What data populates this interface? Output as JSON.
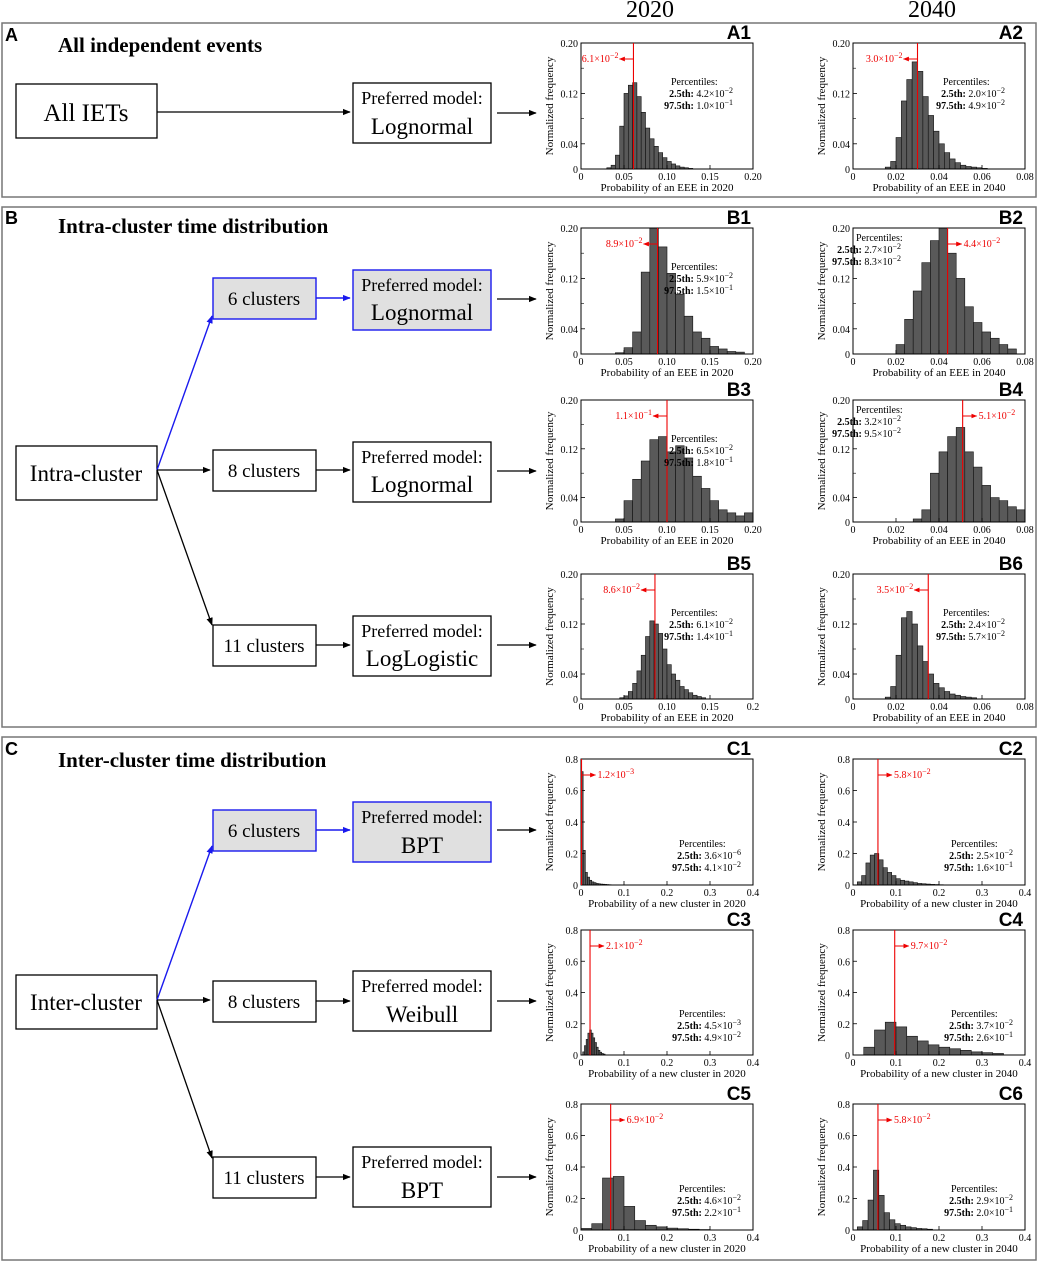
{
  "years": [
    "2020",
    "2040"
  ],
  "sections": [
    {
      "letter": "A",
      "title": "All independent events"
    },
    {
      "letter": "B",
      "title": "Intra-cluster time distribution"
    },
    {
      "letter": "C",
      "title": "Inter-cluster time distribution"
    }
  ],
  "flow": {
    "all_iets": "All IETs",
    "intra_cluster": "Intra-cluster",
    "inter_cluster": "Inter-cluster",
    "clusters_6": "6 clusters",
    "clusters_8": "8 clusters",
    "clusters_11": "11 clusters",
    "preferred_model": "Preferred model:",
    "models": {
      "A": "Lognormal",
      "B6": "Lognormal",
      "B8": "Lognormal",
      "B11": "LogLogistic",
      "C6": "BPT",
      "C8": "Weibull",
      "C11": "BPT"
    }
  },
  "colors": {
    "bar": "#595959",
    "median": "#ee0000",
    "highlight": "#1a1aee",
    "highlight_fill": "#e0e0e0"
  },
  "percentiles_title": "Percentiles:",
  "p25_label": "2.5th",
  "p975_label": "97.5th",
  "ylabel": "Normalized frequency",
  "chart_data": [
    {
      "id": "A1",
      "type": "bar",
      "xlabel": "Probability of an EEE in 2020",
      "xlim": [
        0,
        0.2
      ],
      "ylim": [
        0,
        0.2
      ],
      "xticks": [
        "0",
        "0.05",
        "0.10",
        "0.15",
        "0.20"
      ],
      "yticks": [
        "0",
        "0.04",
        "0.12",
        "0.20"
      ],
      "bin_width": 0.005,
      "bin_start": 0.03,
      "values": [
        0.002,
        0.006,
        0.022,
        0.068,
        0.12,
        0.133,
        0.137,
        0.115,
        0.09,
        0.065,
        0.048,
        0.036,
        0.026,
        0.018,
        0.012,
        0.008,
        0.005,
        0.003,
        0.002,
        0.001
      ],
      "median": 0.061,
      "median_label": "6.1×10",
      "median_exp": "−2",
      "median_side": "left",
      "p25": "4.2×10",
      "p25_exp": "−2",
      "p975": "1.0×10",
      "p975_exp": "−1",
      "pct_box": "right-top"
    },
    {
      "id": "A2",
      "type": "bar",
      "xlabel": "Probability of an EEE in 2040",
      "xlim": [
        0,
        0.08
      ],
      "ylim": [
        0,
        0.2
      ],
      "xticks": [
        "0",
        "0.02",
        "0.04",
        "0.06",
        "0.08"
      ],
      "yticks": [
        "0",
        "0.04",
        "0.12",
        "0.20"
      ],
      "bin_width": 0.0025,
      "bin_start": 0.015,
      "values": [
        0.003,
        0.012,
        0.05,
        0.108,
        0.142,
        0.17,
        0.155,
        0.115,
        0.085,
        0.06,
        0.04,
        0.026,
        0.016,
        0.01,
        0.006,
        0.004,
        0.003,
        0.002,
        0.001
      ],
      "median": 0.03,
      "median_label": "3.0×10",
      "median_exp": "−2",
      "median_side": "left",
      "p25": "2.0×10",
      "p25_exp": "−2",
      "p975": "4.9×10",
      "p975_exp": "−2",
      "pct_box": "right-top"
    },
    {
      "id": "B1",
      "type": "bar",
      "xlabel": "Probability of an EEE in 2020",
      "xlim": [
        0,
        0.2
      ],
      "ylim": [
        0,
        0.2
      ],
      "xticks": [
        "0",
        "0.05",
        "0.10",
        "0.15",
        "0.20"
      ],
      "yticks": [
        "0",
        "0.04",
        "0.12",
        "0.20"
      ],
      "bin_width": 0.01,
      "bin_start": 0.04,
      "values": [
        0.002,
        0.01,
        0.035,
        0.13,
        0.2,
        0.17,
        0.128,
        0.095,
        0.06,
        0.035,
        0.025,
        0.012,
        0.008,
        0.004,
        0.003
      ],
      "median": 0.089,
      "median_label": "8.9×10",
      "median_exp": "−2",
      "median_side": "left",
      "p25": "5.9×10",
      "p25_exp": "−2",
      "p975": "1.5×10",
      "p975_exp": "−1",
      "pct_box": "right-top"
    },
    {
      "id": "B2",
      "type": "bar",
      "xlabel": "Probability of an EEE in 2040",
      "xlim": [
        0,
        0.08
      ],
      "ylim": [
        0,
        0.2
      ],
      "xticks": [
        "0",
        "0.02",
        "0.04",
        "0.06",
        "0.08"
      ],
      "yticks": [
        "0",
        "0.04",
        "0.12",
        "0.20"
      ],
      "bin_width": 0.004,
      "bin_start": 0.02,
      "values": [
        0.015,
        0.055,
        0.1,
        0.145,
        0.18,
        0.2,
        0.16,
        0.12,
        0.075,
        0.05,
        0.035,
        0.025,
        0.015,
        0.008
      ],
      "median": 0.044,
      "median_label": "4.4×10",
      "median_exp": "−2",
      "median_side": "right",
      "p25": "2.7×10",
      "p25_exp": "−2",
      "p975": "8.3×10",
      "p975_exp": "−2",
      "pct_box": "left-top"
    },
    {
      "id": "B3",
      "type": "bar",
      "xlabel": "Probability of an EEE in 2020",
      "xlim": [
        0,
        0.2
      ],
      "ylim": [
        0,
        0.2
      ],
      "xticks": [
        "0",
        "0.05",
        "0.10",
        "0.15",
        "0.20"
      ],
      "yticks": [
        "0",
        "0.04",
        "0.12",
        "0.20"
      ],
      "bin_width": 0.01,
      "bin_start": 0.04,
      "values": [
        0.005,
        0.035,
        0.07,
        0.1,
        0.135,
        0.14,
        0.115,
        0.125,
        0.105,
        0.075,
        0.055,
        0.035,
        0.02,
        0.015,
        0.01,
        0.015
      ],
      "median": 0.1,
      "median_label": "1.1×10",
      "median_exp": "−1",
      "median_side": "left",
      "p25": "6.5×10",
      "p25_exp": "−2",
      "p975": "1.8×10",
      "p975_exp": "−1",
      "pct_box": "right-top"
    },
    {
      "id": "B4",
      "type": "bar",
      "xlabel": "Probability of an EEE in 2040",
      "xlim": [
        0,
        0.08
      ],
      "ylim": [
        0,
        0.2
      ],
      "xticks": [
        "0",
        "0.02",
        "0.04",
        "0.06",
        "0.08"
      ],
      "yticks": [
        "0",
        "0.04",
        "0.12",
        "0.20"
      ],
      "bin_width": 0.004,
      "bin_start": 0.028,
      "values": [
        0.005,
        0.02,
        0.08,
        0.115,
        0.14,
        0.155,
        0.115,
        0.09,
        0.06,
        0.04,
        0.035,
        0.025,
        0.02
      ],
      "median": 0.051,
      "median_label": "5.1×10",
      "median_exp": "−2",
      "median_side": "right",
      "p25": "3.2×10",
      "p25_exp": "−2",
      "p975": "9.5×10",
      "p975_exp": "−2",
      "pct_box": "left-top"
    },
    {
      "id": "B5",
      "type": "bar",
      "xlabel": "Probability of an EEE in 2020",
      "xlim": [
        0,
        0.2
      ],
      "ylim": [
        0,
        0.2
      ],
      "xticks": [
        "0",
        "0.05",
        "0.10",
        "0.15",
        "0.2"
      ],
      "yticks": [
        "0",
        "0.04",
        "0.12",
        "0.20"
      ],
      "bin_width": 0.005,
      "bin_start": 0.045,
      "values": [
        0.002,
        0.005,
        0.012,
        0.025,
        0.045,
        0.07,
        0.1,
        0.125,
        0.12,
        0.105,
        0.08,
        0.055,
        0.04,
        0.03,
        0.02,
        0.015,
        0.01,
        0.006,
        0.004,
        0.002
      ],
      "median": 0.086,
      "median_label": "8.6×10",
      "median_exp": "−2",
      "median_side": "left",
      "p25": "6.1×10",
      "p25_exp": "−2",
      "p975": "1.4×10",
      "p975_exp": "−1",
      "pct_box": "right-top"
    },
    {
      "id": "B6",
      "type": "bar",
      "xlabel": "Probability of an EEE in 2040",
      "xlim": [
        0,
        0.08
      ],
      "ylim": [
        0,
        0.2
      ],
      "xticks": [
        "0",
        "0.02",
        "0.04",
        "0.06",
        "0.08"
      ],
      "yticks": [
        "0",
        "0.04",
        "0.12",
        "0.20"
      ],
      "bin_width": 0.0025,
      "bin_start": 0.015,
      "values": [
        0.003,
        0.02,
        0.07,
        0.13,
        0.14,
        0.12,
        0.085,
        0.06,
        0.04,
        0.025,
        0.018,
        0.012,
        0.008,
        0.006,
        0.004,
        0.003,
        0.002
      ],
      "median": 0.035,
      "median_label": "3.5×10",
      "median_exp": "−2",
      "median_side": "left",
      "p25": "2.4×10",
      "p25_exp": "−2",
      "p975": "5.7×10",
      "p975_exp": "−2",
      "pct_box": "right-top"
    },
    {
      "id": "C1",
      "type": "bar",
      "xlabel": "Probability of a new cluster in 2020",
      "xlim": [
        0,
        0.4
      ],
      "ylim": [
        0,
        0.8
      ],
      "xticks": [
        "0",
        "0.1",
        "0.2",
        "0.3",
        "0.4"
      ],
      "yticks": [
        "0",
        "0.2",
        "0.4",
        "0.6",
        "0.8"
      ],
      "bin_width": 0.005,
      "bin_start": 0,
      "values": [
        0.72,
        0.22,
        0.08,
        0.05,
        0.03,
        0.02,
        0.015,
        0.01,
        0.008,
        0.006,
        0.005,
        0.004,
        0.003,
        0.002
      ],
      "median": 0.0012,
      "median_label": "1.2×10",
      "median_exp": "−3",
      "median_side": "right",
      "p25": "3.6×10",
      "p25_exp": "−6",
      "p975": "4.1×10",
      "p975_exp": "−2",
      "pct_box": "right-bottom"
    },
    {
      "id": "C2",
      "type": "bar",
      "xlabel": "Probability of a new cluster in 2040",
      "xlim": [
        0,
        0.4
      ],
      "ylim": [
        0,
        0.8
      ],
      "xticks": [
        "0",
        "0.1",
        "0.2",
        "0.3",
        "0.4"
      ],
      "yticks": [
        "0",
        "0.2",
        "0.4",
        "0.6",
        "0.8"
      ],
      "bin_width": 0.01,
      "bin_start": 0.01,
      "values": [
        0.02,
        0.06,
        0.14,
        0.19,
        0.2,
        0.16,
        0.11,
        0.08,
        0.06,
        0.04,
        0.03,
        0.025,
        0.02,
        0.015,
        0.01,
        0.008,
        0.006,
        0.004,
        0.003,
        0.002
      ],
      "median": 0.058,
      "median_label": "5.8×10",
      "median_exp": "−2",
      "median_side": "right",
      "p25": "2.5×10",
      "p25_exp": "−2",
      "p975": "1.6×10",
      "p975_exp": "−1",
      "pct_box": "right-bottom"
    },
    {
      "id": "C3",
      "type": "bar",
      "xlabel": "Probability of a new cluster in 2020",
      "xlim": [
        0,
        0.4
      ],
      "ylim": [
        0,
        0.8
      ],
      "xticks": [
        "0",
        "0.1",
        "0.2",
        "0.3",
        "0.4"
      ],
      "yticks": [
        "0",
        "0.2",
        "0.4",
        "0.6",
        "0.8"
      ],
      "bin_width": 0.004,
      "bin_start": 0.004,
      "values": [
        0.02,
        0.06,
        0.1,
        0.14,
        0.16,
        0.14,
        0.11,
        0.08,
        0.05,
        0.03,
        0.018,
        0.01,
        0.006
      ],
      "median": 0.021,
      "median_label": "2.1×10",
      "median_exp": "−2",
      "median_side": "right",
      "p25": "4.5×10",
      "p25_exp": "−3",
      "p975": "4.9×10",
      "p975_exp": "−2",
      "pct_box": "right-bottom"
    },
    {
      "id": "C4",
      "type": "bar",
      "xlabel": "Probability of a new cluster in 2040",
      "xlim": [
        0,
        0.4
      ],
      "ylim": [
        0,
        0.8
      ],
      "xticks": [
        "0",
        "0.1",
        "0.2",
        "0.3",
        "0.4"
      ],
      "yticks": [
        "0",
        "0.2",
        "0.4",
        "0.6",
        "0.8"
      ],
      "bin_width": 0.025,
      "bin_start": 0.025,
      "values": [
        0.05,
        0.16,
        0.21,
        0.18,
        0.12,
        0.09,
        0.065,
        0.05,
        0.04,
        0.03,
        0.02,
        0.015,
        0.01
      ],
      "median": 0.097,
      "median_label": "9.7×10",
      "median_exp": "−2",
      "median_side": "right",
      "p25": "3.7×10",
      "p25_exp": "−2",
      "p975": "2.6×10",
      "p975_exp": "−1",
      "pct_box": "right-bottom"
    },
    {
      "id": "C5",
      "type": "bar",
      "xlabel": "Probability of a new cluster in 2020",
      "xlim": [
        0,
        0.4
      ],
      "ylim": [
        0,
        0.8
      ],
      "xticks": [
        "0",
        "0.1",
        "0.2",
        "0.3",
        "0.4"
      ],
      "yticks": [
        "0",
        "0.2",
        "0.4",
        "0.6",
        "0.8"
      ],
      "bin_width": 0.025,
      "bin_start": 0,
      "values": [
        0.01,
        0.04,
        0.33,
        0.34,
        0.15,
        0.06,
        0.03,
        0.02,
        0.012,
        0.008,
        0.005,
        0.003
      ],
      "median": 0.069,
      "median_label": "6.9×10",
      "median_exp": "−2",
      "median_side": "right",
      "p25": "4.6×10",
      "p25_exp": "−2",
      "p975": "2.2×10",
      "p975_exp": "−1",
      "pct_box": "right-bottom"
    },
    {
      "id": "C6",
      "type": "bar",
      "xlabel": "Probability of a new cluster in 2040",
      "xlim": [
        0,
        0.4
      ],
      "ylim": [
        0,
        0.8
      ],
      "xticks": [
        "0",
        "0.1",
        "0.2",
        "0.3",
        "0.4"
      ],
      "yticks": [
        "0",
        "0.2",
        "0.4",
        "0.6",
        "0.8"
      ],
      "bin_width": 0.0125,
      "bin_start": 0.01,
      "values": [
        0.02,
        0.06,
        0.19,
        0.38,
        0.22,
        0.11,
        0.065,
        0.04,
        0.03,
        0.02,
        0.015,
        0.01,
        0.008,
        0.005
      ],
      "median": 0.058,
      "median_label": "5.8×10",
      "median_exp": "−2",
      "median_side": "right",
      "p25": "2.9×10",
      "p25_exp": "−2",
      "p975": "2.0×10",
      "p975_exp": "−1",
      "pct_box": "right-bottom"
    }
  ]
}
